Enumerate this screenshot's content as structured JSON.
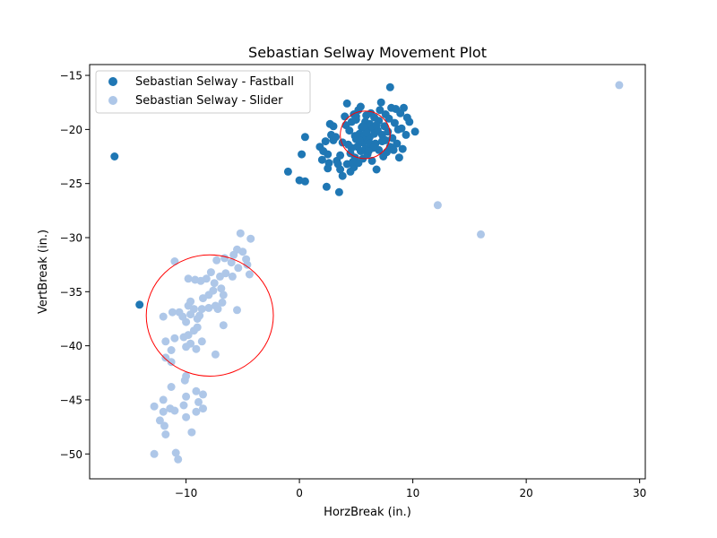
{
  "chart_data": {
    "type": "scatter",
    "title": "Sebastian Selway Movement Plot",
    "xlabel": "HorzBreak (in.)",
    "ylabel": "VertBreak (in.)",
    "xlim": [
      -18.5,
      30.5
    ],
    "ylim": [
      -52.3,
      -14.0
    ],
    "xticks": [
      -10,
      0,
      10,
      20,
      30
    ],
    "yticks": [
      -15,
      -20,
      -25,
      -30,
      -35,
      -40,
      -45,
      -50
    ],
    "grid": false,
    "legend_position": "top-left",
    "series": [
      {
        "name": "Sebastian Selway - Fastball",
        "color": "#1f77b4",
        "points": [
          [
            -16.3,
            -22.5
          ],
          [
            -14.1,
            -36.2
          ],
          [
            -1.0,
            -23.9
          ],
          [
            0.0,
            -24.7
          ],
          [
            0.5,
            -24.8
          ],
          [
            0.2,
            -22.3
          ],
          [
            0.5,
            -20.7
          ],
          [
            1.8,
            -21.6
          ],
          [
            2.0,
            -22.8
          ],
          [
            2.1,
            -22.0
          ],
          [
            2.3,
            -21.1
          ],
          [
            2.5,
            -22.3
          ],
          [
            2.4,
            -25.3
          ],
          [
            2.6,
            -23.1
          ],
          [
            2.5,
            -23.6
          ],
          [
            2.7,
            -19.5
          ],
          [
            2.8,
            -20.5
          ],
          [
            3.0,
            -19.7
          ],
          [
            3.0,
            -21.0
          ],
          [
            3.2,
            -20.7
          ],
          [
            3.3,
            -22.9
          ],
          [
            3.4,
            -23.2
          ],
          [
            3.5,
            -25.8
          ],
          [
            3.6,
            -22.4
          ],
          [
            3.6,
            -23.7
          ],
          [
            3.8,
            -24.3
          ],
          [
            3.8,
            -21.2
          ],
          [
            4.0,
            -18.8
          ],
          [
            4.1,
            -19.6
          ],
          [
            4.2,
            -17.6
          ],
          [
            4.2,
            -23.2
          ],
          [
            4.4,
            -20.1
          ],
          [
            4.5,
            -22.2
          ],
          [
            4.5,
            -23.9
          ],
          [
            4.6,
            -19.3
          ],
          [
            4.6,
            -21.7
          ],
          [
            4.8,
            -18.6
          ],
          [
            4.8,
            -23.5
          ],
          [
            4.9,
            -22.6
          ],
          [
            5.0,
            -19.1
          ],
          [
            5.0,
            -20.9
          ],
          [
            5.1,
            -21.6
          ],
          [
            5.2,
            -23.1
          ],
          [
            5.2,
            -18.2
          ],
          [
            5.3,
            -20.4
          ],
          [
            5.4,
            -17.9
          ],
          [
            5.4,
            -22.0
          ],
          [
            5.5,
            -19.8
          ],
          [
            5.6,
            -21.2
          ],
          [
            5.6,
            -22.7
          ],
          [
            5.7,
            -20.6
          ],
          [
            5.8,
            -19.3
          ],
          [
            5.8,
            -21.8
          ],
          [
            5.9,
            -18.7
          ],
          [
            6.0,
            -20.0
          ],
          [
            6.0,
            -22.3
          ],
          [
            6.1,
            -21.1
          ],
          [
            6.2,
            -19.5
          ],
          [
            6.2,
            -20.7
          ],
          [
            6.3,
            -18.5
          ],
          [
            6.4,
            -21.6
          ],
          [
            6.4,
            -22.9
          ],
          [
            6.5,
            -19.9
          ],
          [
            6.6,
            -20.4
          ],
          [
            6.6,
            -18.9
          ],
          [
            6.7,
            -21.3
          ],
          [
            6.8,
            -23.7
          ],
          [
            6.9,
            -20.1
          ],
          [
            7.0,
            -19.2
          ],
          [
            7.0,
            -21.9
          ],
          [
            7.1,
            -18.2
          ],
          [
            7.2,
            -17.5
          ],
          [
            7.3,
            -20.5
          ],
          [
            7.4,
            -22.5
          ],
          [
            7.5,
            -19.7
          ],
          [
            7.6,
            -21.0
          ],
          [
            7.6,
            -18.6
          ],
          [
            7.8,
            -20.2
          ],
          [
            7.9,
            -19.0
          ],
          [
            8.0,
            -16.1
          ],
          [
            8.0,
            -21.6
          ],
          [
            8.1,
            -18.0
          ],
          [
            8.2,
            -20.8
          ],
          [
            8.4,
            -19.4
          ],
          [
            8.5,
            -18.1
          ],
          [
            8.6,
            -21.3
          ],
          [
            8.7,
            -20.0
          ],
          [
            8.8,
            -22.6
          ],
          [
            8.9,
            -18.5
          ],
          [
            9.0,
            -19.9
          ],
          [
            9.1,
            -21.8
          ],
          [
            9.2,
            -18.0
          ],
          [
            9.4,
            -20.5
          ],
          [
            9.5,
            -18.9
          ],
          [
            9.7,
            -19.3
          ],
          [
            10.2,
            -20.2
          ],
          [
            6.2,
            -21.3
          ],
          [
            5.9,
            -20.3
          ],
          [
            6.5,
            -21.7
          ],
          [
            5.3,
            -21.0
          ],
          [
            6.8,
            -19.6
          ],
          [
            5.6,
            -19.7
          ],
          [
            6.1,
            -22.0
          ],
          [
            4.9,
            -20.6
          ],
          [
            7.3,
            -21.1
          ],
          [
            5.0,
            -18.8
          ],
          [
            7.7,
            -22.1
          ],
          [
            4.3,
            -21.4
          ],
          [
            8.3,
            -21.9
          ],
          [
            4.7,
            -23.0
          ]
        ]
      },
      {
        "name": "Sebastian Selway - Slider",
        "color": "#aec7e8",
        "points": [
          [
            28.2,
            -15.9
          ],
          [
            16.0,
            -29.7
          ],
          [
            12.2,
            -27.0
          ],
          [
            -5.2,
            -29.6
          ],
          [
            -4.3,
            -30.1
          ],
          [
            -5.5,
            -31.1
          ],
          [
            -5.8,
            -31.6
          ],
          [
            -5.0,
            -31.3
          ],
          [
            -4.7,
            -32.0
          ],
          [
            -4.6,
            -32.5
          ],
          [
            -5.4,
            -32.8
          ],
          [
            -6.0,
            -32.3
          ],
          [
            -6.6,
            -31.9
          ],
          [
            -7.3,
            -32.1
          ],
          [
            -5.9,
            -33.6
          ],
          [
            -4.4,
            -33.4
          ],
          [
            -6.5,
            -33.3
          ],
          [
            -7.0,
            -33.6
          ],
          [
            -7.8,
            -33.2
          ],
          [
            -8.2,
            -33.8
          ],
          [
            -8.7,
            -34.0
          ],
          [
            -9.2,
            -33.9
          ],
          [
            -9.8,
            -33.8
          ],
          [
            -7.5,
            -34.2
          ],
          [
            -6.9,
            -34.7
          ],
          [
            -7.6,
            -34.9
          ],
          [
            -8.0,
            -35.3
          ],
          [
            -8.5,
            -35.6
          ],
          [
            -6.7,
            -35.3
          ],
          [
            -6.8,
            -36.0
          ],
          [
            -7.4,
            -36.3
          ],
          [
            -8.0,
            -36.5
          ],
          [
            -8.6,
            -36.6
          ],
          [
            -9.3,
            -36.6
          ],
          [
            -9.8,
            -36.3
          ],
          [
            -7.2,
            -36.6
          ],
          [
            -5.5,
            -36.7
          ],
          [
            -8.8,
            -37.2
          ],
          [
            -9.0,
            -37.5
          ],
          [
            -9.6,
            -37.1
          ],
          [
            -10.3,
            -37.3
          ],
          [
            -10.6,
            -36.9
          ],
          [
            -11.2,
            -36.9
          ],
          [
            -12.0,
            -37.3
          ],
          [
            -10.0,
            -37.8
          ],
          [
            -6.7,
            -38.1
          ],
          [
            -9.0,
            -38.3
          ],
          [
            -9.3,
            -38.6
          ],
          [
            -9.8,
            -39.0
          ],
          [
            -10.2,
            -39.2
          ],
          [
            -11.0,
            -39.3
          ],
          [
            -11.8,
            -39.6
          ],
          [
            -8.6,
            -39.6
          ],
          [
            -9.6,
            -39.8
          ],
          [
            -10.0,
            -40.1
          ],
          [
            -9.1,
            -40.3
          ],
          [
            -11.3,
            -40.4
          ],
          [
            -7.4,
            -40.8
          ],
          [
            -11.8,
            -41.1
          ],
          [
            -11.3,
            -41.5
          ],
          [
            -10.0,
            -42.8
          ],
          [
            -10.1,
            -43.2
          ],
          [
            -11.3,
            -43.8
          ],
          [
            -9.1,
            -44.2
          ],
          [
            -8.5,
            -44.5
          ],
          [
            -10.0,
            -44.7
          ],
          [
            -12.0,
            -45.0
          ],
          [
            -8.9,
            -45.2
          ],
          [
            -12.8,
            -45.6
          ],
          [
            -10.2,
            -45.5
          ],
          [
            -11.4,
            -45.8
          ],
          [
            -8.5,
            -45.8
          ],
          [
            -9.1,
            -46.1
          ],
          [
            -12.0,
            -46.1
          ],
          [
            -11.0,
            -46.0
          ],
          [
            -10.0,
            -46.6
          ],
          [
            -12.3,
            -46.9
          ],
          [
            -11.9,
            -47.4
          ],
          [
            -11.8,
            -48.2
          ],
          [
            -9.5,
            -48.0
          ],
          [
            -12.8,
            -50.0
          ],
          [
            -10.9,
            -49.9
          ],
          [
            -10.7,
            -50.5
          ],
          [
            -11.0,
            -32.2
          ],
          [
            -9.6,
            -35.9
          ]
        ]
      }
    ],
    "circles": [
      {
        "cx": 5.8,
        "cy": -20.5,
        "r": 2.2,
        "color": "#ff0000"
      },
      {
        "cx": -7.9,
        "cy": -37.2,
        "r": 5.6,
        "color": "#ff0000"
      }
    ]
  }
}
